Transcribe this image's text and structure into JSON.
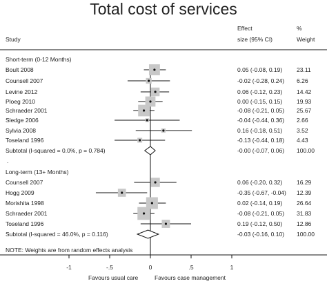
{
  "chart_data": {
    "type": "forest",
    "title": "Total cost of services",
    "headers": {
      "study": "Study",
      "effect_top": "Effect",
      "effect_bottom": "size (95% CI)",
      "weight_top": "%",
      "weight_bottom": "Weight"
    },
    "x_ticks": [
      "-1",
      "-.5",
      "0",
      ".5",
      "1"
    ],
    "x_tick_values": [
      -1,
      -0.5,
      0,
      0.5,
      1
    ],
    "x_range": [
      -1.1,
      1.1
    ],
    "x_label_left": "Favours usual care",
    "x_label_right": "Favours case management",
    "groups": [
      {
        "name": "Short-term (0-12 Months)",
        "studies": [
          {
            "label": "Boult 2008",
            "effect": 0.05,
            "lo": -0.08,
            "hi": 0.19,
            "effect_text": "0.05 (-0.08, 0.19)",
            "weight": "23.11"
          },
          {
            "label": "Counsell 2007",
            "effect": -0.02,
            "lo": -0.28,
            "hi": 0.24,
            "effect_text": "-0.02 (-0.28, 0.24)",
            "weight": "6.26"
          },
          {
            "label": "Levine 2012",
            "effect": 0.06,
            "lo": -0.12,
            "hi": 0.23,
            "effect_text": "0.06 (-0.12, 0.23)",
            "weight": "14.42"
          },
          {
            "label": "Ploeg 2010",
            "effect": 0.0,
            "lo": -0.15,
            "hi": 0.15,
            "effect_text": "0.00 (-0.15, 0.15)",
            "weight": "19.93"
          },
          {
            "label": "Schraeder 2001",
            "effect": -0.08,
            "lo": -0.21,
            "hi": 0.05,
            "effect_text": "-0.08 (-0.21, 0.05)",
            "weight": "25.67"
          },
          {
            "label": "Sledge 2006",
            "effect": -0.04,
            "lo": -0.44,
            "hi": 0.36,
            "effect_text": "-0.04 (-0.44, 0.36)",
            "weight": "2.66"
          },
          {
            "label": "Sylvia 2008",
            "effect": 0.16,
            "lo": -0.18,
            "hi": 0.51,
            "effect_text": "0.16 (-0.18, 0.51)",
            "weight": "3.52"
          },
          {
            "label": "Toseland 1996",
            "effect": -0.13,
            "lo": -0.44,
            "hi": 0.18,
            "effect_text": "-0.13 (-0.44, 0.18)",
            "weight": "4.43"
          }
        ],
        "subtotal": {
          "label": "Subtotal  (I-squared = 0.0%, p = 0.784)",
          "effect": 0.0,
          "lo": -0.07,
          "hi": 0.06,
          "effect_text": "-0.00 (-0.07, 0.06)",
          "weight": "100.00"
        }
      },
      {
        "name": "Long-term (13+ Months)",
        "studies": [
          {
            "label": "Counsell 2007",
            "effect": 0.06,
            "lo": -0.2,
            "hi": 0.32,
            "effect_text": "0.06 (-0.20, 0.32)",
            "weight": "16.29"
          },
          {
            "label": "Hogg 2009",
            "effect": -0.35,
            "lo": -0.67,
            "hi": -0.04,
            "effect_text": "-0.35 (-0.67, -0.04)",
            "weight": "12.39"
          },
          {
            "label": "Morishita 1998",
            "effect": 0.02,
            "lo": -0.14,
            "hi": 0.19,
            "effect_text": "0.02 (-0.14, 0.19)",
            "weight": "26.64"
          },
          {
            "label": "Schraeder 2001",
            "effect": -0.08,
            "lo": -0.21,
            "hi": 0.05,
            "effect_text": "-0.08 (-0.21, 0.05)",
            "weight": "31.83"
          },
          {
            "label": "Toseland 1996",
            "effect": 0.19,
            "lo": -0.12,
            "hi": 0.5,
            "effect_text": "0.19 (-0.12, 0.50)",
            "weight": "12.86"
          }
        ],
        "subtotal": {
          "label": "Subtotal  (I-squared = 46.0%, p = 0.116)",
          "effect": -0.03,
          "lo": -0.16,
          "hi": 0.1,
          "effect_text": "-0.03 (-0.16, 0.10)",
          "weight": "100.00"
        }
      }
    ],
    "note": "NOTE: Weights are from random effects analysis",
    "separator": ".",
    "grid": false,
    "colors": {
      "box": "#c8c8c8",
      "line": "#111111",
      "text": "#222222"
    }
  }
}
